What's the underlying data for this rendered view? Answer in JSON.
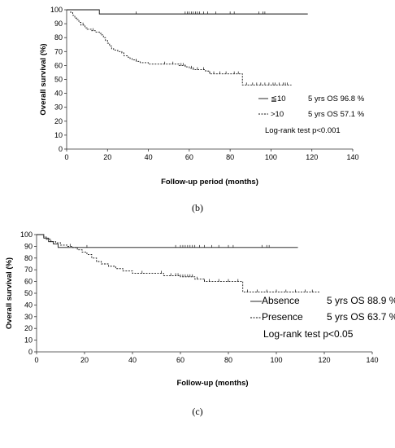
{
  "chart_data": [
    {
      "type": "line",
      "subtype": "kaplan-meier",
      "caption": "(b)",
      "xlabel": "Follow-up period (months)",
      "ylabel": "Overall survival (%)",
      "xlim": [
        0,
        140
      ],
      "ylim": [
        0,
        100
      ],
      "xticks": [
        "0",
        "20",
        "40",
        "60",
        "80",
        "100",
        "120",
        "140"
      ],
      "yticks": [
        "0",
        "10",
        "20",
        "30",
        "40",
        "50",
        "60",
        "70",
        "80",
        "90",
        "100"
      ],
      "grid": false,
      "legend_position": "bottom-right",
      "annotation": "Log-rank test p<0.001",
      "series": [
        {
          "name": "≦10",
          "label": "5 yrs OS 96.8 %",
          "style": "solid",
          "x": [
            0,
            16,
            16,
            118
          ],
          "y": [
            100,
            100,
            97,
            97
          ],
          "censor_x": [
            34,
            58,
            59,
            60,
            61,
            62,
            63,
            64,
            65,
            67,
            69,
            73,
            80,
            82,
            94,
            96,
            97
          ]
        },
        {
          "name": ">10",
          "label": "5 yrs OS 57.1 %",
          "style": "dashed",
          "x": [
            0,
            2,
            3,
            4,
            5,
            6,
            7,
            9,
            10,
            12,
            14,
            16,
            17,
            18,
            19,
            20,
            21,
            22,
            23,
            25,
            27,
            28,
            30,
            31,
            32,
            34,
            36,
            40,
            53,
            55,
            58,
            60,
            62,
            66,
            68,
            70,
            80,
            86,
            110
          ],
          "y": [
            100,
            98,
            96,
            94,
            93,
            91,
            89,
            87,
            86,
            85,
            84,
            83,
            82,
            80,
            78,
            76,
            74,
            72,
            71,
            70,
            69,
            67,
            66,
            65,
            64,
            63,
            62,
            61,
            61,
            60,
            59,
            58,
            57,
            57,
            56,
            54,
            54,
            46,
            46
          ],
          "censor_x": [
            8,
            13,
            34,
            48,
            52,
            56,
            57,
            58,
            61,
            62,
            64,
            67,
            70,
            72,
            75,
            78,
            82,
            84,
            88,
            91,
            93,
            95,
            97,
            99,
            101,
            102,
            104,
            106,
            107,
            108
          ]
        }
      ]
    },
    {
      "type": "line",
      "subtype": "kaplan-meier",
      "caption": "(c)",
      "xlabel": "Follow-up (months)",
      "ylabel": "Overall survival (%)",
      "xlim": [
        0,
        140
      ],
      "ylim": [
        0,
        100
      ],
      "xticks": [
        "0",
        "20",
        "40",
        "60",
        "80",
        "100",
        "120",
        "140"
      ],
      "yticks": [
        "0",
        "10",
        "20",
        "30",
        "40",
        "50",
        "60",
        "70",
        "80",
        "90",
        "100"
      ],
      "grid": false,
      "legend_position": "bottom-right",
      "annotation": "Log-rank test p<0.05",
      "series": [
        {
          "name": "Absence",
          "label": "5 yrs OS 88.9 %",
          "style": "solid",
          "x": [
            0,
            3,
            5,
            7,
            9,
            109
          ],
          "y": [
            100,
            97,
            94,
            92,
            89,
            89
          ],
          "censor_x": [
            21,
            58,
            60,
            61,
            62,
            63,
            64,
            65,
            66,
            68,
            70,
            73,
            76,
            80,
            82,
            94,
            96,
            97
          ]
        },
        {
          "name": "Presence",
          "label": "5 yrs OS 63.7 %",
          "style": "dashed",
          "x": [
            0,
            3,
            4,
            6,
            8,
            10,
            13,
            15,
            17,
            19,
            21,
            23,
            25,
            27,
            30,
            33,
            36,
            40,
            53,
            60,
            66,
            70,
            86,
            118
          ],
          "y": [
            100,
            98,
            96,
            94,
            93,
            91,
            90,
            89,
            87,
            85,
            83,
            80,
            77,
            75,
            73,
            71,
            69,
            67,
            65,
            64,
            62,
            60,
            51,
            51
          ],
          "censor_x": [
            14,
            44,
            52,
            56,
            58,
            59,
            60,
            61,
            62,
            63,
            64,
            65,
            67,
            70,
            72,
            76,
            80,
            84,
            88,
            92,
            96,
            100,
            104,
            108,
            112,
            115
          ]
        }
      ]
    }
  ]
}
